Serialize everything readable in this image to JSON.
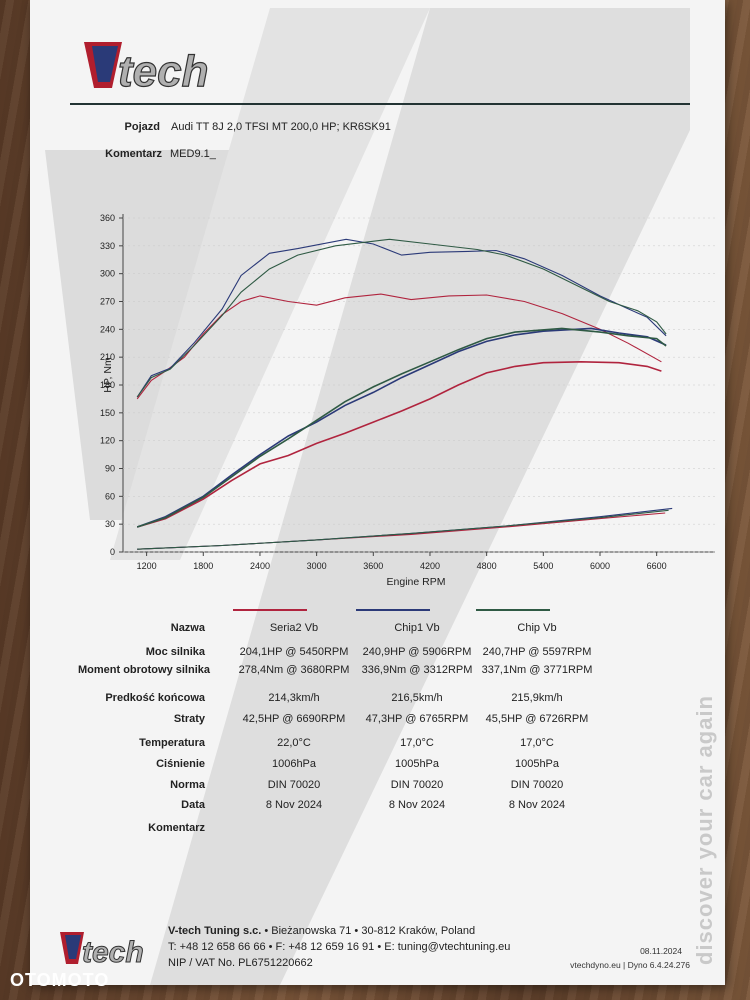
{
  "header": {
    "vehicle_label": "Pojazd",
    "vehicle_value": "Audi TT 8J 2,0 TFSI MT 200,0 HP; KR6SK91",
    "comment_label": "Komentarz",
    "comment_value": "MED9.1_",
    "logo_text": "V-tech"
  },
  "colors": {
    "seria2": "#b0243e",
    "chip1": "#2b3a78",
    "chipvb": "#2f5a44",
    "loss": "#8a2a3a"
  },
  "chart_data": {
    "type": "line",
    "xlabel": "Engine RPM",
    "ylabel": "HP, Nm",
    "xticks": [
      1200,
      1800,
      2400,
      3000,
      3600,
      4200,
      4800,
      5400,
      6000,
      6600
    ],
    "yticks": [
      0,
      30,
      60,
      90,
      120,
      150,
      180,
      210,
      240,
      270,
      300,
      330,
      360
    ],
    "xlim": [
      950,
      6900
    ],
    "ylim": [
      0,
      360
    ],
    "series": [
      {
        "name": "Seria2 Vb",
        "kind": "power",
        "color_key": "seria2",
        "points": [
          [
            1100,
            27
          ],
          [
            1400,
            36
          ],
          [
            1800,
            57
          ],
          [
            2100,
            77
          ],
          [
            2400,
            95
          ],
          [
            2700,
            104
          ],
          [
            3000,
            117
          ],
          [
            3300,
            128
          ],
          [
            3600,
            140
          ],
          [
            3900,
            152
          ],
          [
            4200,
            165
          ],
          [
            4500,
            180
          ],
          [
            4800,
            193
          ],
          [
            5100,
            200
          ],
          [
            5400,
            204
          ],
          [
            5800,
            205
          ],
          [
            6200,
            204
          ],
          [
            6500,
            200
          ],
          [
            6650,
            195
          ]
        ]
      },
      {
        "name": "Seria2 Vb",
        "kind": "torque",
        "color_key": "seria2",
        "points": [
          [
            1100,
            165
          ],
          [
            1250,
            185
          ],
          [
            1400,
            195
          ],
          [
            1600,
            210
          ],
          [
            1800,
            235
          ],
          [
            2000,
            256
          ],
          [
            2200,
            270
          ],
          [
            2400,
            276
          ],
          [
            2700,
            270
          ],
          [
            3000,
            266
          ],
          [
            3300,
            274
          ],
          [
            3680,
            278
          ],
          [
            4000,
            272
          ],
          [
            4400,
            276
          ],
          [
            4800,
            277
          ],
          [
            5200,
            270
          ],
          [
            5600,
            257
          ],
          [
            6000,
            240
          ],
          [
            6300,
            225
          ],
          [
            6650,
            205
          ]
        ]
      },
      {
        "name": "Chip1 Vb",
        "kind": "power",
        "color_key": "chip1",
        "points": [
          [
            1100,
            27
          ],
          [
            1400,
            38
          ],
          [
            1800,
            60
          ],
          [
            2100,
            83
          ],
          [
            2400,
            105
          ],
          [
            2700,
            125
          ],
          [
            3000,
            140
          ],
          [
            3300,
            158
          ],
          [
            3600,
            172
          ],
          [
            3900,
            188
          ],
          [
            4200,
            202
          ],
          [
            4500,
            216
          ],
          [
            4800,
            227
          ],
          [
            5100,
            234
          ],
          [
            5400,
            238
          ],
          [
            5906,
            241
          ],
          [
            6200,
            236
          ],
          [
            6500,
            232
          ],
          [
            6700,
            223
          ]
        ]
      },
      {
        "name": "Chip1 Vb",
        "kind": "torque",
        "color_key": "chip1",
        "points": [
          [
            1100,
            167
          ],
          [
            1250,
            190
          ],
          [
            1450,
            198
          ],
          [
            1700,
            225
          ],
          [
            2000,
            262
          ],
          [
            2200,
            298
          ],
          [
            2500,
            322
          ],
          [
            2800,
            327
          ],
          [
            3312,
            337
          ],
          [
            3600,
            332
          ],
          [
            3900,
            320
          ],
          [
            4200,
            323
          ],
          [
            4600,
            324
          ],
          [
            4900,
            325
          ],
          [
            5200,
            316
          ],
          [
            5600,
            298
          ],
          [
            6000,
            276
          ],
          [
            6300,
            262
          ],
          [
            6500,
            253
          ],
          [
            6700,
            233
          ]
        ]
      },
      {
        "name": "Chip Vb",
        "kind": "power",
        "color_key": "chipvb",
        "points": [
          [
            1100,
            27
          ],
          [
            1400,
            37
          ],
          [
            1800,
            59
          ],
          [
            2100,
            81
          ],
          [
            2400,
            103
          ],
          [
            2700,
            122
          ],
          [
            3000,
            142
          ],
          [
            3300,
            162
          ],
          [
            3600,
            178
          ],
          [
            3900,
            192
          ],
          [
            4200,
            205
          ],
          [
            4500,
            218
          ],
          [
            4800,
            230
          ],
          [
            5100,
            237
          ],
          [
            5597,
            241
          ],
          [
            6000,
            237
          ],
          [
            6300,
            233
          ],
          [
            6600,
            230
          ],
          [
            6700,
            222
          ]
        ]
      },
      {
        "name": "Chip Vb",
        "kind": "torque",
        "color_key": "chipvb",
        "points": [
          [
            1100,
            167
          ],
          [
            1250,
            188
          ],
          [
            1450,
            197
          ],
          [
            1700,
            222
          ],
          [
            2000,
            255
          ],
          [
            2200,
            280
          ],
          [
            2500,
            305
          ],
          [
            2800,
            320
          ],
          [
            3200,
            330
          ],
          [
            3771,
            337
          ],
          [
            4200,
            332
          ],
          [
            4700,
            326
          ],
          [
            5000,
            320
          ],
          [
            5400,
            305
          ],
          [
            5800,
            285
          ],
          [
            6100,
            270
          ],
          [
            6400,
            260
          ],
          [
            6600,
            248
          ],
          [
            6700,
            235
          ]
        ]
      },
      {
        "name": "Seria2 Vb",
        "kind": "losses",
        "color_key": "seria2",
        "points": [
          [
            1100,
            3
          ],
          [
            2000,
            7
          ],
          [
            3000,
            13
          ],
          [
            4000,
            19
          ],
          [
            5000,
            27
          ],
          [
            6000,
            36
          ],
          [
            6690,
            42
          ]
        ]
      },
      {
        "name": "Chip1 Vb",
        "kind": "losses",
        "color_key": "chip1",
        "points": [
          [
            1100,
            3
          ],
          [
            2000,
            7
          ],
          [
            3000,
            13
          ],
          [
            4000,
            20
          ],
          [
            5000,
            28
          ],
          [
            6000,
            38
          ],
          [
            6765,
            47
          ]
        ]
      },
      {
        "name": "Chip Vb",
        "kind": "losses",
        "color_key": "chipvb",
        "points": [
          [
            1100,
            3
          ],
          [
            2000,
            7
          ],
          [
            3000,
            13
          ],
          [
            4000,
            20
          ],
          [
            5000,
            28
          ],
          [
            6000,
            37
          ],
          [
            6726,
            45
          ]
        ]
      }
    ]
  },
  "results": {
    "columns": [
      "Seria2 Vb",
      "Chip1 Vb",
      "Chip Vb"
    ],
    "rows": [
      {
        "label": "Nazwa",
        "values": [
          "",
          "",
          ""
        ]
      },
      {
        "label": "Moc silnika",
        "values": [
          "204,1HP @ 5450RPM",
          "240,9HP @ 5906RPM",
          "240,7HP @ 5597RPM"
        ]
      },
      {
        "label": "Moment obrotowy silnika",
        "values": [
          "278,4Nm @ 3680RPM",
          "336,9Nm @ 3312RPM",
          "337,1Nm @ 3771RPM"
        ]
      },
      {
        "label": "Predkość końcowa",
        "values": [
          "214,3km/h",
          "216,5km/h",
          "215,9km/h"
        ]
      },
      {
        "label": "Straty",
        "values": [
          "42,5HP @ 6690RPM",
          "47,3HP @ 6765RPM",
          "45,5HP @ 6726RPM"
        ]
      },
      {
        "label": "Temperatura",
        "values": [
          "22,0°C",
          "17,0°C",
          "17,0°C"
        ]
      },
      {
        "label": "Ciśnienie",
        "values": [
          "1006hPa",
          "1005hPa",
          "1005hPa"
        ]
      },
      {
        "label": "Norma",
        "values": [
          "DIN 70020",
          "DIN 70020",
          "DIN 70020"
        ]
      },
      {
        "label": "Data",
        "values": [
          "8 Nov 2024",
          "8 Nov 2024",
          "8 Nov 2024"
        ]
      },
      {
        "label": "Komentarz",
        "values": [
          "",
          "",
          ""
        ]
      }
    ]
  },
  "footer": {
    "company": "V-tech Tuning s.c.",
    "address": " • Bieżanowska 71 • 30-812 Kraków, Poland",
    "phone_line": "T: +48 12 658 66 66 • F: +48 12 659 16 91 • E: tuning@vtechtuning.eu",
    "nip_line": "NIP / VAT No. PL6751220662",
    "date": "08.11.2024",
    "dyno": "vtechdyno.eu | Dyno 6.4.24.276",
    "slogan": "discover your car again",
    "watermark": "OTOMOTO"
  }
}
